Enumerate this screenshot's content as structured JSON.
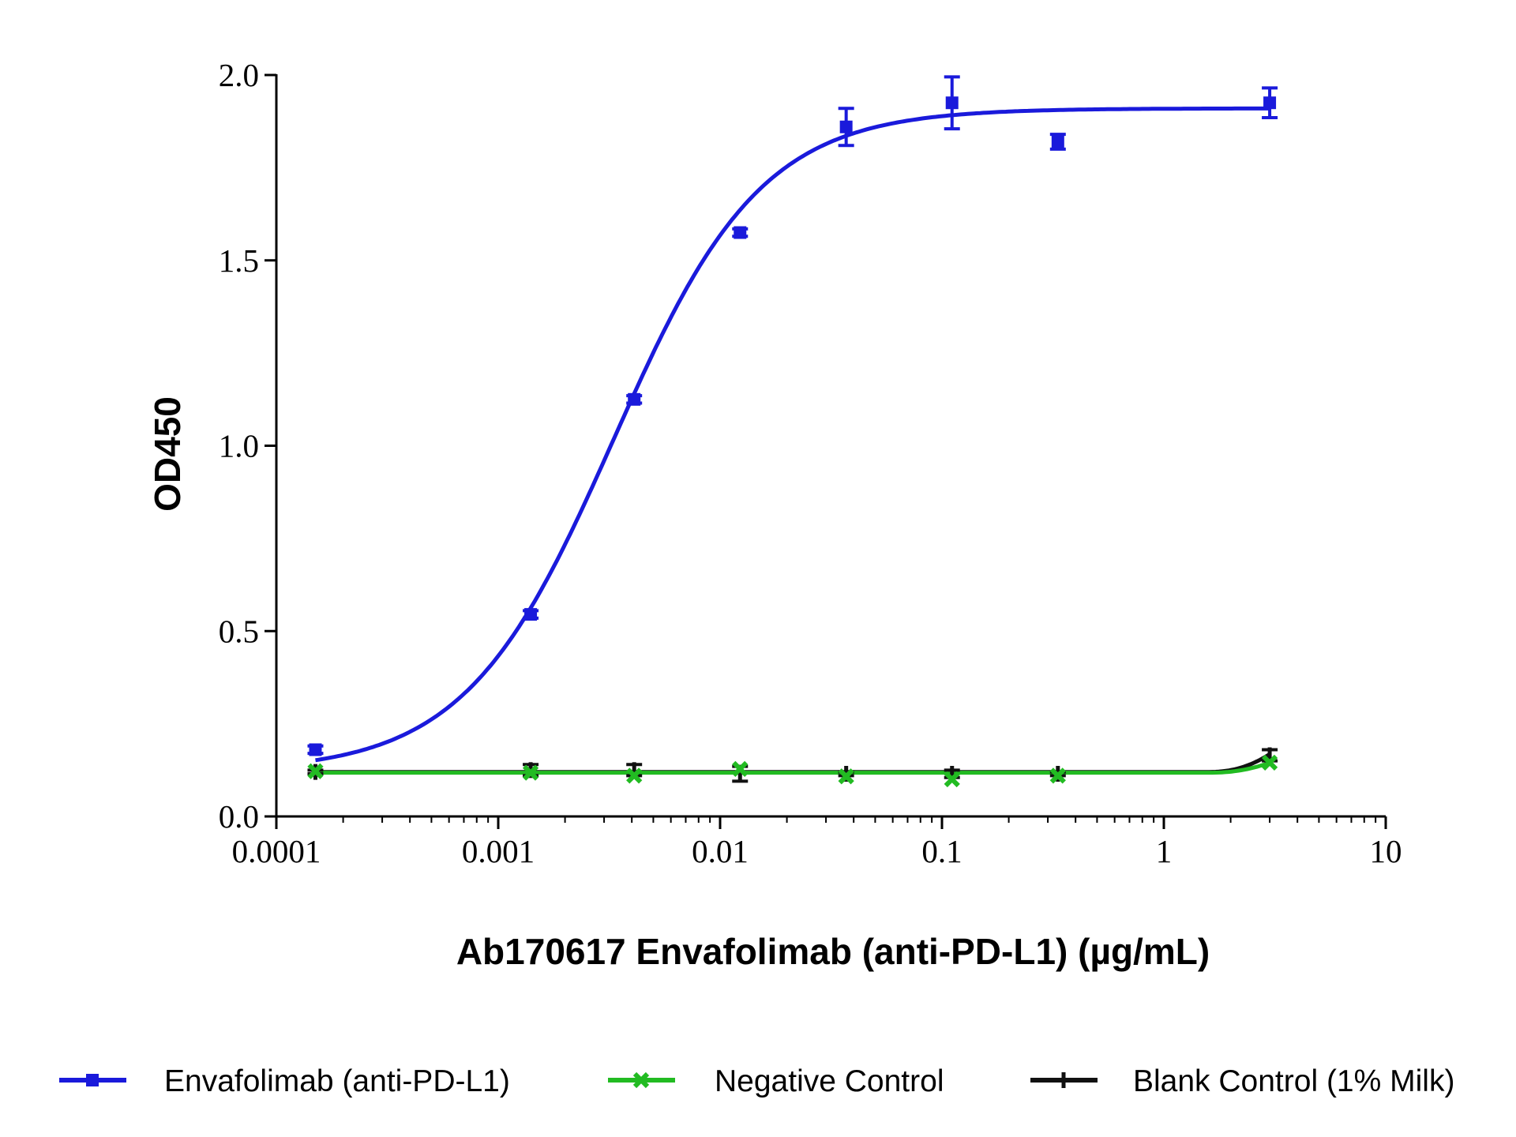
{
  "chart_data": {
    "type": "scatter",
    "xlabel": "Ab170617 Envafolimab (anti-PD-L1) (µg/mL)",
    "ylabel": "OD450",
    "xscale": "log",
    "xlim": [
      0.0001,
      10
    ],
    "ylim": [
      0,
      2.0
    ],
    "x_ticks": [
      0.0001,
      0.001,
      0.01,
      0.1,
      1,
      10
    ],
    "x_tick_labels": [
      "0.0001",
      "0.001",
      "0.01",
      "0.1",
      "1",
      "10"
    ],
    "y_ticks": [
      0,
      0.5,
      1.0,
      1.5,
      2.0
    ],
    "y_tick_labels": [
      "0.0",
      "0.5",
      "1.0",
      "1.5",
      "2.0"
    ],
    "grid": false,
    "legend_position": "bottom",
    "series": [
      {
        "name": "Envafolimab (anti-PD-L1)",
        "color": "#1a1adb",
        "marker": "square",
        "x": [
          0.00015,
          0.0014,
          0.0041,
          0.0123,
          0.037,
          0.111,
          0.333,
          3.0
        ],
        "y": [
          0.18,
          0.545,
          1.125,
          1.575,
          1.86,
          1.925,
          1.82,
          1.925
        ],
        "error": [
          0.01,
          0.01,
          0.01,
          0.01,
          0.05,
          0.07,
          0.02,
          0.04
        ],
        "fit": {
          "model": "4PL",
          "bottom": 0.12,
          "top": 1.91,
          "ec50": 0.0033,
          "hill": 1.3
        }
      },
      {
        "name": "Negative Control",
        "color": "#22bb22",
        "marker": "x",
        "x": [
          0.00015,
          0.0014,
          0.0041,
          0.0123,
          0.037,
          0.111,
          0.333,
          3.0
        ],
        "y": [
          0.122,
          0.118,
          0.11,
          0.128,
          0.108,
          0.1,
          0.11,
          0.145
        ],
        "fit": {
          "model": "flat",
          "value": 0.118,
          "end_value": 0.145
        }
      },
      {
        "name": "Blank Control (1% Milk)",
        "color": "#111111",
        "marker": "tick",
        "x": [
          0.00015,
          0.0014,
          0.0041,
          0.0123,
          0.037,
          0.111,
          0.333,
          3.0
        ],
        "y": [
          0.12,
          0.125,
          0.125,
          0.115,
          0.115,
          0.115,
          0.115,
          0.165
        ],
        "error": [
          0.005,
          0.015,
          0.015,
          0.02,
          0.005,
          0.01,
          0.005,
          0.015
        ],
        "fit": {
          "model": "flat",
          "value": 0.12,
          "end_value": 0.168
        }
      }
    ]
  }
}
